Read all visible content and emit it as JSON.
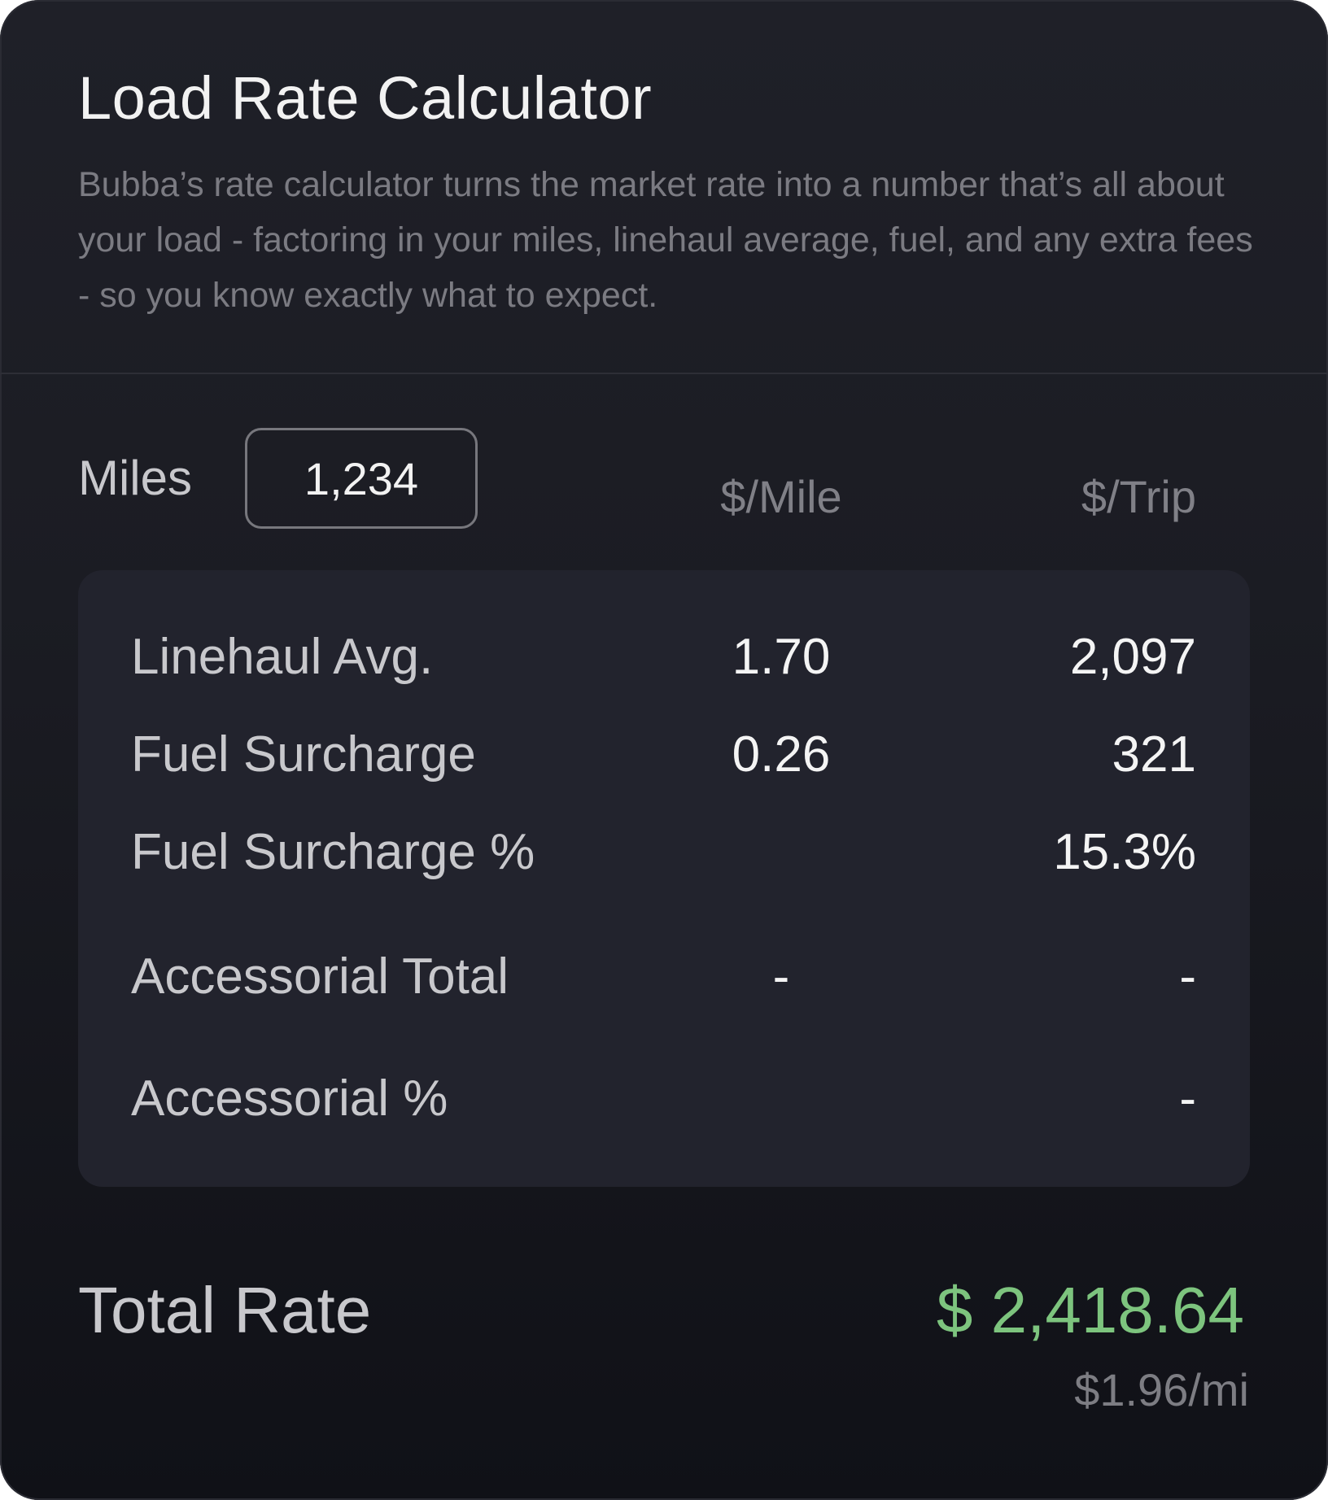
{
  "header": {
    "title": "Load Rate Calculator",
    "description": "Bubba’s rate calculator turns the market rate into a number that’s all about your load - factoring in your miles, linehaul average, fuel, and any extra fees - so you know exactly what to expect."
  },
  "miles": {
    "label": "Miles",
    "value": "1,234"
  },
  "columns": {
    "per_mile": "$/Mile",
    "per_trip": "$/Trip"
  },
  "rows": [
    {
      "label": "Linehaul Avg.",
      "per_mile": "1.70",
      "per_trip": "2,097"
    },
    {
      "label": "Fuel Surcharge",
      "per_mile": "0.26",
      "per_trip": "321"
    },
    {
      "label": "Fuel Surcharge %",
      "per_mile": "",
      "per_trip": "15.3%"
    },
    {
      "label": "Accessorial Total",
      "per_mile": "-",
      "per_trip": "-"
    },
    {
      "label": "Accessorial %",
      "per_mile": "",
      "per_trip": "-"
    }
  ],
  "total": {
    "label": "Total Rate",
    "value": "$ 2,418.64",
    "per_mile": "$1.96/mi"
  },
  "colors": {
    "accent_green": "#7dc47e",
    "background": "#1b1c23",
    "panel": "#22232d"
  }
}
